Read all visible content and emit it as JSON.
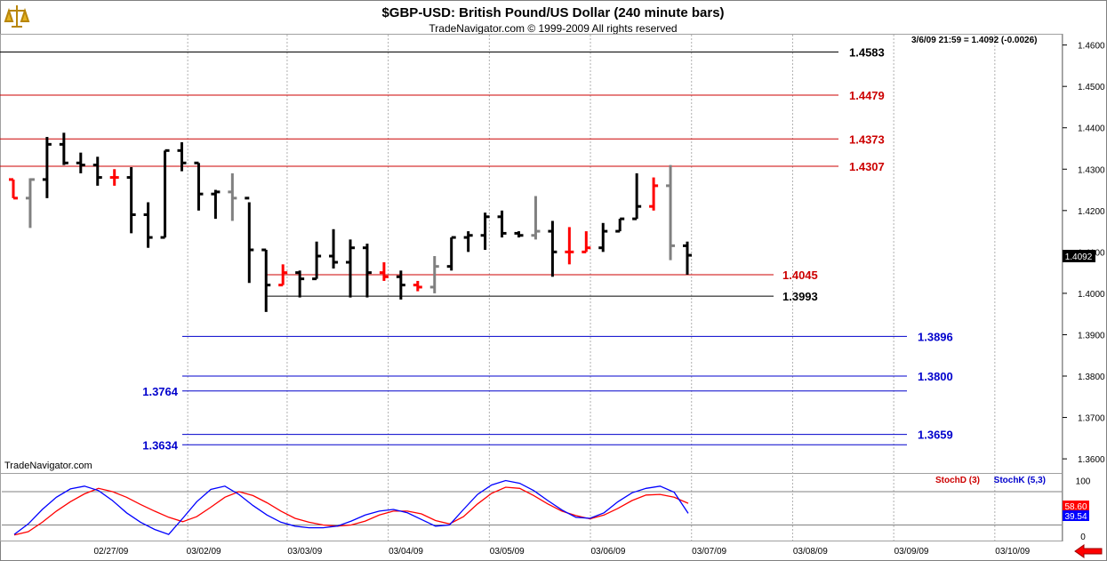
{
  "header": {
    "title": "$GBP-USD:  British Pound/US Dollar  (240 minute bars)",
    "subtitle": "TradeNavigator.com © 1999-2009 All rights reserved",
    "readout": "3/6/09 21:59 = 1.4092 (-0.0026)",
    "watermark": "TradeNavigator.com"
  },
  "chart_data": [
    {
      "type": "ohlc",
      "title": "$GBP-USD:  British Pound/US Dollar  (240 minute bars)",
      "ylim": [
        1.3568,
        1.4625
      ],
      "y_ticks": [
        "1.4600",
        "1.4500",
        "1.4400",
        "1.4300",
        "1.4200",
        "1.4100",
        "1.4000",
        "1.3900",
        "1.3800",
        "1.3700",
        "1.3600"
      ],
      "last_price": "1.4092",
      "x_tick_labels": [
        "02/27/09",
        "03/02/09",
        "03/03/09",
        "03/04/09",
        "03/05/09",
        "03/06/09",
        "03/07/09",
        "03/08/09",
        "03/09/09",
        "03/10/09"
      ],
      "bar_colors": {
        "black": "#000000",
        "red": "#ff0000",
        "gray": "#808080"
      },
      "bars": [
        {
          "o": 1.4275,
          "h": 1.4275,
          "l": 1.423,
          "c": 1.423,
          "color": "red"
        },
        {
          "o": 1.423,
          "h": 1.4278,
          "l": 1.4158,
          "c": 1.4275,
          "color": "gray"
        },
        {
          "o": 1.4275,
          "h": 1.4378,
          "l": 1.423,
          "c": 1.436,
          "color": "black"
        },
        {
          "o": 1.436,
          "h": 1.4388,
          "l": 1.431,
          "c": 1.4315,
          "color": "black"
        },
        {
          "o": 1.4315,
          "h": 1.434,
          "l": 1.429,
          "c": 1.431,
          "color": "black"
        },
        {
          "o": 1.431,
          "h": 1.433,
          "l": 1.426,
          "c": 1.428,
          "color": "black"
        },
        {
          "o": 1.428,
          "h": 1.43,
          "l": 1.426,
          "c": 1.428,
          "color": "red"
        },
        {
          "o": 1.428,
          "h": 1.4305,
          "l": 1.4145,
          "c": 1.419,
          "color": "black"
        },
        {
          "o": 1.419,
          "h": 1.422,
          "l": 1.411,
          "c": 1.4135,
          "color": "black"
        },
        {
          "o": 1.4135,
          "h": 1.4345,
          "l": 1.4135,
          "c": 1.4345,
          "color": "black"
        },
        {
          "o": 1.4345,
          "h": 1.4365,
          "l": 1.4295,
          "c": 1.4315,
          "color": "black"
        },
        {
          "o": 1.4315,
          "h": 1.4315,
          "l": 1.42,
          "c": 1.424,
          "color": "black"
        },
        {
          "o": 1.424,
          "h": 1.425,
          "l": 1.418,
          "c": 1.4245,
          "color": "black"
        },
        {
          "o": 1.4245,
          "h": 1.429,
          "l": 1.4175,
          "c": 1.423,
          "color": "gray"
        },
        {
          "o": 1.423,
          "h": 1.422,
          "l": 1.4025,
          "c": 1.4105,
          "color": "black"
        },
        {
          "o": 1.4105,
          "h": 1.4105,
          "l": 1.3955,
          "c": 1.402,
          "color": "black"
        },
        {
          "o": 1.402,
          "h": 1.407,
          "l": 1.402,
          "c": 1.405,
          "color": "red"
        },
        {
          "o": 1.405,
          "h": 1.4055,
          "l": 1.399,
          "c": 1.4035,
          "color": "black"
        },
        {
          "o": 1.4035,
          "h": 1.4125,
          "l": 1.4035,
          "c": 1.409,
          "color": "black"
        },
        {
          "o": 1.409,
          "h": 1.4155,
          "l": 1.406,
          "c": 1.4075,
          "color": "black"
        },
        {
          "o": 1.4075,
          "h": 1.413,
          "l": 1.399,
          "c": 1.411,
          "color": "black"
        },
        {
          "o": 1.411,
          "h": 1.412,
          "l": 1.399,
          "c": 1.405,
          "color": "black"
        },
        {
          "o": 1.405,
          "h": 1.4075,
          "l": 1.403,
          "c": 1.404,
          "color": "red"
        },
        {
          "o": 1.404,
          "h": 1.4055,
          "l": 1.3985,
          "c": 1.402,
          "color": "black"
        },
        {
          "o": 1.402,
          "h": 1.403,
          "l": 1.4005,
          "c": 1.4015,
          "color": "red"
        },
        {
          "o": 1.4015,
          "h": 1.409,
          "l": 1.4,
          "c": 1.4065,
          "color": "gray"
        },
        {
          "o": 1.4065,
          "h": 1.4135,
          "l": 1.4055,
          "c": 1.4135,
          "color": "black"
        },
        {
          "o": 1.4135,
          "h": 1.415,
          "l": 1.41,
          "c": 1.414,
          "color": "black"
        },
        {
          "o": 1.414,
          "h": 1.4195,
          "l": 1.4105,
          "c": 1.4185,
          "color": "black"
        },
        {
          "o": 1.4185,
          "h": 1.42,
          "l": 1.4135,
          "c": 1.4145,
          "color": "black"
        },
        {
          "o": 1.4145,
          "h": 1.415,
          "l": 1.4135,
          "c": 1.414,
          "color": "black"
        },
        {
          "o": 1.414,
          "h": 1.4235,
          "l": 1.413,
          "c": 1.415,
          "color": "gray"
        },
        {
          "o": 1.415,
          "h": 1.4175,
          "l": 1.404,
          "c": 1.41,
          "color": "black"
        },
        {
          "o": 1.41,
          "h": 1.416,
          "l": 1.407,
          "c": 1.41,
          "color": "red"
        },
        {
          "o": 1.41,
          "h": 1.415,
          "l": 1.41,
          "c": 1.411,
          "color": "red"
        },
        {
          "o": 1.411,
          "h": 1.417,
          "l": 1.41,
          "c": 1.415,
          "color": "black"
        },
        {
          "o": 1.415,
          "h": 1.418,
          "l": 1.415,
          "c": 1.418,
          "color": "black"
        },
        {
          "o": 1.418,
          "h": 1.429,
          "l": 1.418,
          "c": 1.421,
          "color": "black"
        },
        {
          "o": 1.421,
          "h": 1.428,
          "l": 1.42,
          "c": 1.426,
          "color": "red"
        },
        {
          "o": 1.426,
          "h": 1.431,
          "l": 1.408,
          "c": 1.4115,
          "color": "gray"
        },
        {
          "o": 1.4115,
          "h": 1.4125,
          "l": 1.4045,
          "c": 1.4092,
          "color": "black"
        }
      ],
      "levels": [
        {
          "label": "1.4583",
          "value": 1.4583,
          "color": "#000000",
          "label_side": "right"
        },
        {
          "label": "1.4479",
          "value": 1.4479,
          "color": "#cc0000",
          "label_side": "right"
        },
        {
          "label": "1.4373",
          "value": 1.4373,
          "color": "#cc0000",
          "label_side": "right"
        },
        {
          "label": "1.4307",
          "value": 1.4307,
          "color": "#cc0000",
          "label_side": "right"
        },
        {
          "label": "1.4045",
          "value": 1.4045,
          "color": "#cc0000",
          "label_side": "right"
        },
        {
          "label": "1.3993",
          "value": 1.3993,
          "color": "#000000",
          "label_side": "right"
        },
        {
          "label": "1.3896",
          "value": 1.3896,
          "color": "#0000cc",
          "label_side": "right"
        },
        {
          "label": "1.3800",
          "value": 1.38,
          "color": "#0000cc",
          "label_side": "right"
        },
        {
          "label": "1.3764",
          "value": 1.3764,
          "color": "#0000cc",
          "label_side": "left"
        },
        {
          "label": "1.3659",
          "value": 1.3659,
          "color": "#0000cc",
          "label_side": "right"
        },
        {
          "label": "1.3634",
          "value": 1.3634,
          "color": "#0000cc",
          "label_side": "left"
        }
      ]
    },
    {
      "type": "line",
      "title": "",
      "ylim": [
        -8,
        112
      ],
      "y_ticks": [
        "100",
        "50",
        "0"
      ],
      "reference_lines": [
        80,
        20
      ],
      "legend": [
        "StochD (3)",
        "StochK (5,3)"
      ],
      "series": [
        {
          "name": "StochD (3)",
          "color": "#ff0000",
          "readout": "58.60",
          "values": [
            2,
            8,
            25,
            45,
            62,
            76,
            86,
            80,
            70,
            57,
            45,
            34,
            26,
            35,
            52,
            70,
            80,
            73,
            60,
            45,
            32,
            25,
            20,
            18,
            20,
            27,
            38,
            45,
            45,
            40,
            28,
            22,
            35,
            58,
            77,
            88,
            86,
            73,
            58,
            45,
            37,
            31,
            38,
            50,
            64,
            74,
            75,
            70,
            59
          ]
        },
        {
          "name": "StochK (5,3)",
          "color": "#0000ff",
          "readout": "39.54",
          "values": [
            3,
            22,
            48,
            70,
            85,
            90,
            82,
            64,
            42,
            25,
            12,
            3,
            32,
            62,
            84,
            90,
            75,
            55,
            38,
            25,
            18,
            15,
            15,
            18,
            27,
            38,
            45,
            48,
            42,
            30,
            18,
            20,
            48,
            75,
            92,
            100,
            95,
            82,
            64,
            47,
            34,
            32,
            42,
            62,
            78,
            86,
            90,
            79,
            41
          ]
        }
      ]
    }
  ]
}
